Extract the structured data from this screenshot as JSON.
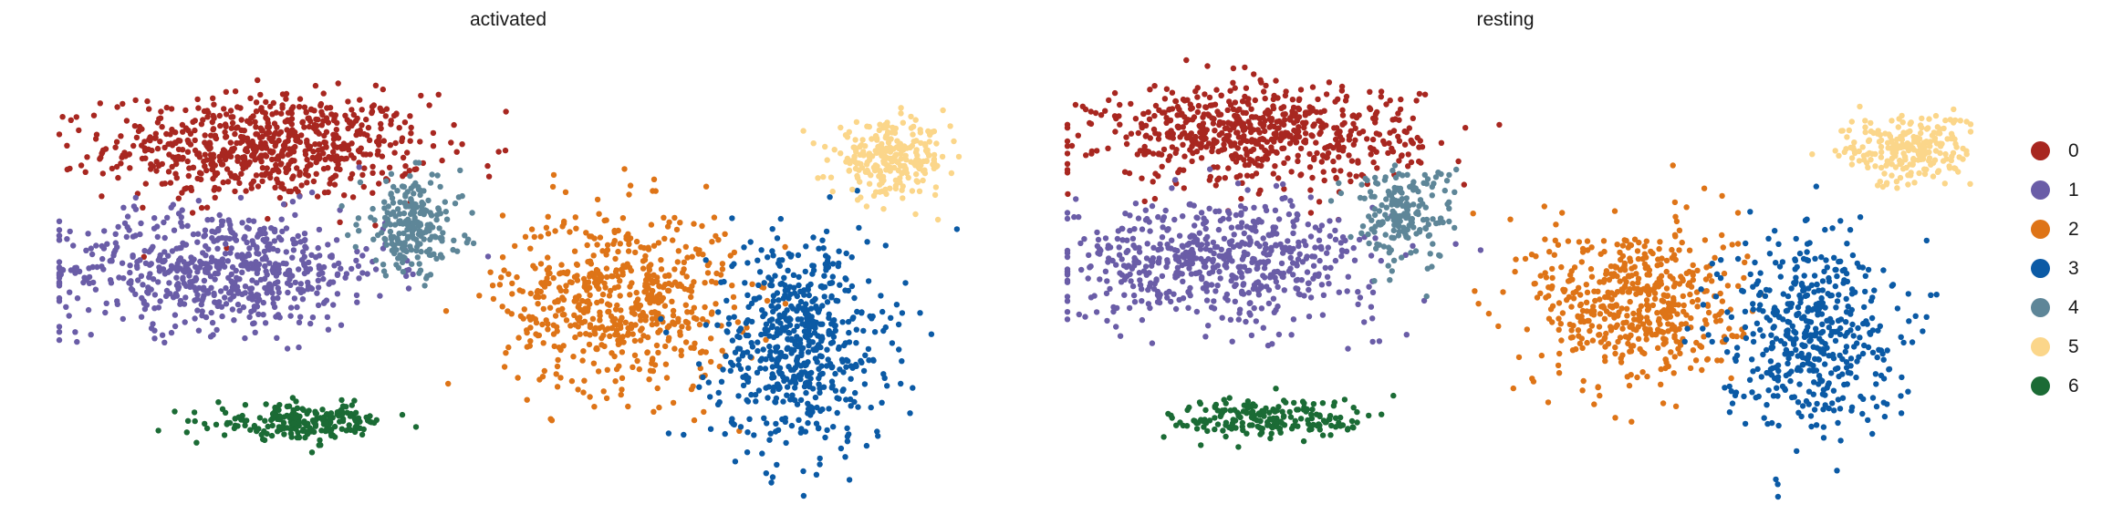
{
  "chart_data": [
    {
      "type": "scatter",
      "title": "activated",
      "xlabel": "",
      "ylabel": "",
      "grid": false,
      "clusters": [
        {
          "name": "0",
          "color": "#A82720",
          "center": [
            0.23,
            0.8
          ],
          "spread": [
            0.11,
            0.075
          ],
          "n": 700
        },
        {
          "name": "1",
          "color": "#6A5DA7",
          "center": [
            0.18,
            0.52
          ],
          "spread": [
            0.115,
            0.085
          ],
          "n": 650
        },
        {
          "name": "2",
          "color": "#DE7417",
          "center": [
            0.62,
            0.45
          ],
          "spread": [
            0.08,
            0.13
          ],
          "n": 600
        },
        {
          "name": "3",
          "color": "#0B5AA5",
          "center": [
            0.82,
            0.35
          ],
          "spread": [
            0.06,
            0.15
          ],
          "n": 600
        },
        {
          "name": "4",
          "color": "#5E8698",
          "center": [
            0.39,
            0.62
          ],
          "spread": [
            0.035,
            0.07
          ],
          "n": 220
        },
        {
          "name": "5",
          "color": "#FBD68A",
          "center": [
            0.92,
            0.77
          ],
          "spread": [
            0.04,
            0.05
          ],
          "n": 260
        },
        {
          "name": "6",
          "color": "#1B6B35",
          "center": [
            0.27,
            0.17
          ],
          "spread": [
            0.06,
            0.025
          ],
          "n": 210
        }
      ]
    },
    {
      "type": "scatter",
      "title": "resting",
      "xlabel": "",
      "ylabel": "",
      "grid": false,
      "clusters": [
        {
          "name": "0",
          "color": "#A82720",
          "center": [
            0.21,
            0.83
          ],
          "spread": [
            0.11,
            0.07
          ],
          "n": 650
        },
        {
          "name": "1",
          "color": "#6A5DA7",
          "center": [
            0.17,
            0.54
          ],
          "spread": [
            0.11,
            0.085
          ],
          "n": 600
        },
        {
          "name": "2",
          "color": "#DE7417",
          "center": [
            0.63,
            0.44
          ],
          "spread": [
            0.07,
            0.12
          ],
          "n": 520
        },
        {
          "name": "3",
          "color": "#0B5AA5",
          "center": [
            0.82,
            0.38
          ],
          "spread": [
            0.06,
            0.14
          ],
          "n": 480
        },
        {
          "name": "4",
          "color": "#5E8698",
          "center": [
            0.37,
            0.65
          ],
          "spread": [
            0.035,
            0.07
          ],
          "n": 180
        },
        {
          "name": "5",
          "color": "#FBD68A",
          "center": [
            0.93,
            0.79
          ],
          "spread": [
            0.045,
            0.05
          ],
          "n": 230
        },
        {
          "name": "6",
          "color": "#1B6B35",
          "center": [
            0.23,
            0.18
          ],
          "spread": [
            0.07,
            0.03
          ],
          "n": 200
        }
      ]
    }
  ],
  "legend": {
    "placement": "right",
    "items": [
      {
        "label": "0",
        "color": "#A82720"
      },
      {
        "label": "1",
        "color": "#6A5DA7"
      },
      {
        "label": "2",
        "color": "#DE7417"
      },
      {
        "label": "3",
        "color": "#0B5AA5"
      },
      {
        "label": "4",
        "color": "#5E8698"
      },
      {
        "label": "5",
        "color": "#FBD68A"
      },
      {
        "label": "6",
        "color": "#1B6B35"
      }
    ]
  }
}
